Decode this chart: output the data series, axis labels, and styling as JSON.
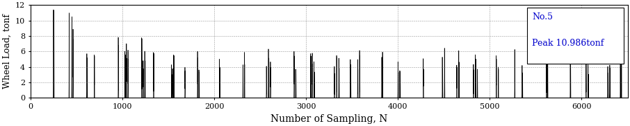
{
  "xlabel": "Number of Sampling, N",
  "ylabel": "Wheel Load, tonf",
  "xlim": [
    0,
    6500
  ],
  "ylim": [
    0,
    12
  ],
  "yticks": [
    0,
    2,
    4,
    6,
    8,
    10,
    12
  ],
  "xticks": [
    0,
    1000,
    2000,
    3000,
    4000,
    5000,
    6000
  ],
  "legend_label1": "No.5",
  "legend_label2": "Peak 10.986tonf",
  "legend_color": "#0000cc",
  "line_color": "#000000",
  "peak_value": 10.986,
  "background_color": "#ffffff",
  "grid_color": "#555555",
  "xlabel_fontsize": 10,
  "ylabel_fontsize": 9,
  "tick_fontsize": 8,
  "legend_fontsize": 9,
  "num_samples": 6500,
  "seed": 7
}
